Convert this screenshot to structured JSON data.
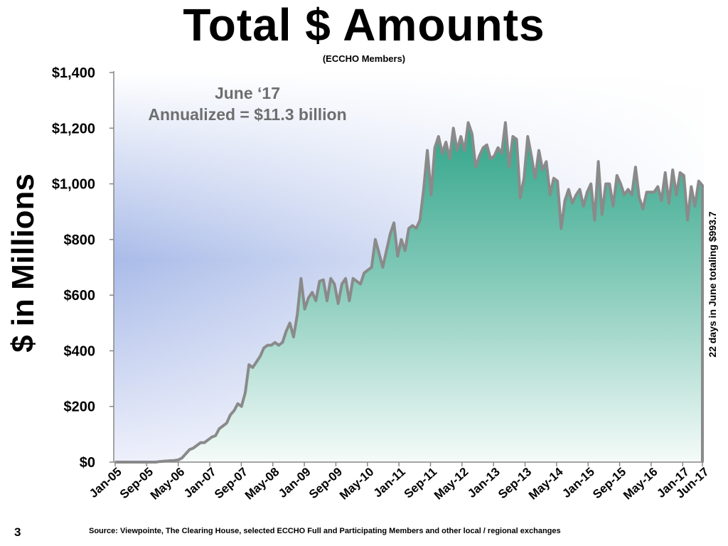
{
  "slide": {
    "page_number": "3",
    "source": "Source: Viewpointe, The Clearing House, selected ECCHO Full and Participating Members and other local / regional exchanges"
  },
  "chart_data": {
    "type": "area",
    "title": "Total $ Amounts",
    "subtitle": "(ECCHO Members)",
    "ylabel": "$ in Millions",
    "xlabel": "",
    "ylim": [
      0,
      1400
    ],
    "y_ticks": [
      0,
      200,
      400,
      600,
      800,
      1000,
      1200,
      1400
    ],
    "y_tick_labels": [
      "$0",
      "$200",
      "$400",
      "$600",
      "$800",
      "$1,000",
      "$1,200",
      "$1,400"
    ],
    "x_tick_labels": [
      "Jan-05",
      "Sep-05",
      "May-06",
      "Jan-07",
      "Sep-07",
      "May-08",
      "Jan-09",
      "Sep-09",
      "May-10",
      "Jan-11",
      "Sep-11",
      "May-12",
      "Jan-13",
      "Sep-13",
      "May-14",
      "Jan-15",
      "Sep-15",
      "May-16",
      "Jan-17",
      "Jun-17"
    ],
    "x_start": "Jan-05",
    "x_end": "Jun-17",
    "annotation_lines": [
      "June ‘17",
      "Annualized = $11.3 billion"
    ],
    "side_note": "22 days in June totaling $993.7",
    "colors": {
      "fill_top": "#3aa88f",
      "line": "#8a8a8a",
      "bg_blue": "#a9bbe8"
    },
    "grid": false,
    "values": [
      0,
      0,
      0,
      0,
      0,
      0,
      0,
      0,
      0,
      0,
      0,
      0,
      2,
      3,
      4,
      5,
      6,
      8,
      15,
      30,
      45,
      50,
      60,
      70,
      70,
      80,
      90,
      95,
      120,
      130,
      140,
      170,
      185,
      210,
      200,
      250,
      350,
      340,
      360,
      380,
      410,
      420,
      420,
      430,
      420,
      430,
      470,
      500,
      450,
      530,
      660,
      550,
      590,
      610,
      580,
      650,
      655,
      580,
      660,
      640,
      570,
      640,
      660,
      580,
      660,
      650,
      640,
      680,
      690,
      700,
      800,
      750,
      700,
      760,
      820,
      860,
      740,
      800,
      760,
      840,
      850,
      840,
      870,
      980,
      1120,
      960,
      1130,
      1170,
      1110,
      1150,
      1090,
      1200,
      1120,
      1170,
      1120,
      1220,
      1180,
      1060,
      1100,
      1130,
      1140,
      1090,
      1100,
      1130,
      1110,
      1220,
      1060,
      1170,
      1160,
      950,
      1020,
      1170,
      1100,
      1020,
      1120,
      1050,
      1080,
      960,
      1020,
      1010,
      840,
      940,
      980,
      930,
      960,
      980,
      920,
      970,
      1000,
      870,
      1080,
      890,
      1000,
      1000,
      920,
      1030,
      1000,
      960,
      980,
      960,
      1060,
      950,
      910,
      970,
      970,
      970,
      990,
      940,
      1040,
      930,
      1050,
      960,
      1040,
      1030,
      870,
      990,
      920,
      1010,
      994
    ]
  }
}
